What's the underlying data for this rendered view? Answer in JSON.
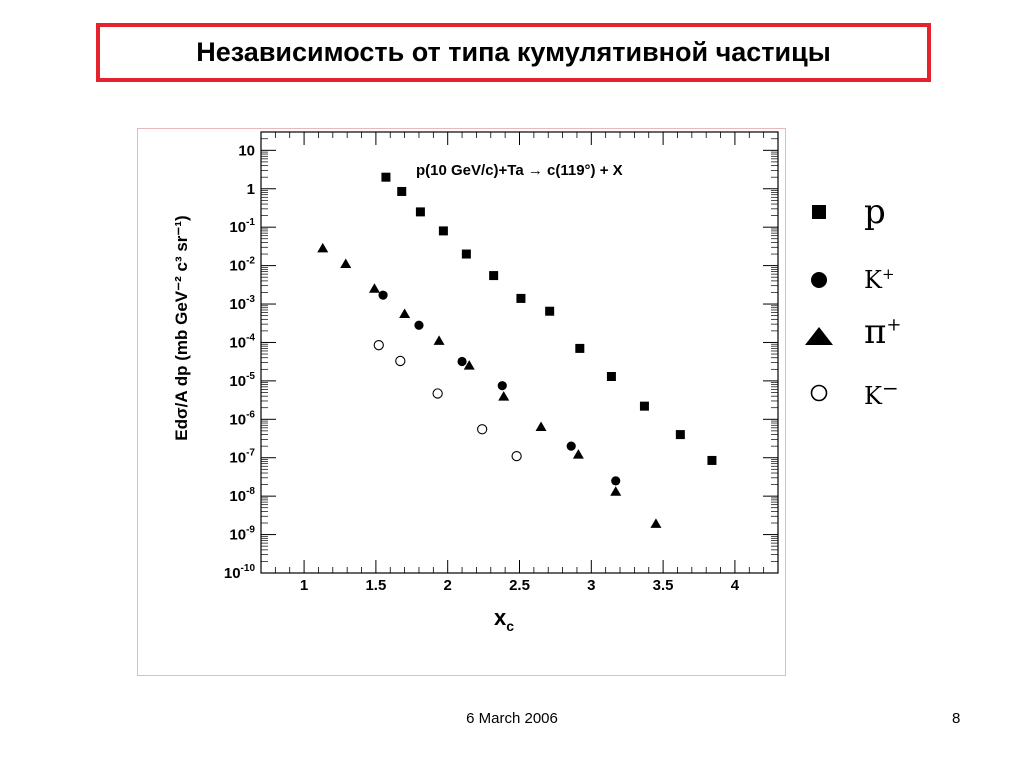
{
  "slide": {
    "title": "Независимость от типа кумулятивной частицы",
    "date": "6 March 2006",
    "page_number": "8"
  },
  "colors": {
    "title_border": "#e5232b",
    "marker": "#000000"
  },
  "legend": [
    {
      "marker": "filled-square",
      "text": "p",
      "sup": ""
    },
    {
      "marker": "filled-circle",
      "text": "K",
      "sup": "+"
    },
    {
      "marker": "filled-triangle",
      "text": "π",
      "sup": "+"
    },
    {
      "marker": "open-circle",
      "text": "K",
      "sup": "−"
    }
  ],
  "chart_data": {
    "type": "scatter",
    "annotation": "p(10 GeV/c)+Ta → c(119°) + X",
    "xlabel": "x",
    "xlabel_sub": "c",
    "ylabel": "Edσ/A dp (mb GeV⁻² c³ sr⁻¹)",
    "xlim": [
      0.7,
      4.3
    ],
    "ylim": [
      1e-10,
      30
    ],
    "yscale": "log",
    "x_ticks": [
      "1",
      "1.5",
      "2",
      "2.5",
      "3",
      "3.5",
      "4"
    ],
    "y_ticks": [
      {
        "base": "10",
        "exp": "-10"
      },
      {
        "base": "10",
        "exp": "-9"
      },
      {
        "base": "10",
        "exp": "-8"
      },
      {
        "base": "10",
        "exp": "-7"
      },
      {
        "base": "10",
        "exp": "-6"
      },
      {
        "base": "10",
        "exp": "-5"
      },
      {
        "base": "10",
        "exp": "-4"
      },
      {
        "base": "10",
        "exp": "-3"
      },
      {
        "base": "10",
        "exp": "-2"
      },
      {
        "base": "10",
        "exp": "-1"
      },
      {
        "base": "1",
        "exp": ""
      },
      {
        "base": "10",
        "exp": ""
      }
    ],
    "grid": false,
    "series": [
      {
        "marker": "filled-square",
        "x": [
          1.57,
          1.68,
          1.81,
          1.97,
          2.13,
          2.32,
          2.51,
          2.71,
          2.92,
          3.14,
          3.37,
          3.62,
          3.84
        ],
        "y": [
          2.0,
          0.85,
          0.25,
          0.08,
          0.02,
          0.0055,
          0.0014,
          0.00065,
          7e-05,
          1.3e-05,
          2.2e-06,
          4e-07,
          8.5e-08
        ]
      },
      {
        "marker": "filled-circle",
        "x": [
          1.55,
          1.8,
          2.1,
          2.38,
          2.86,
          3.17
        ],
        "y": [
          0.0017,
          0.00028,
          3.2e-05,
          7.5e-06,
          2e-07,
          2.5e-08
        ]
      },
      {
        "marker": "filled-triangle",
        "x": [
          1.13,
          1.29,
          1.49,
          1.7,
          1.94,
          2.15,
          2.39,
          2.65,
          2.91,
          3.17,
          3.45
        ],
        "y": [
          0.028,
          0.011,
          0.0025,
          0.00055,
          0.00011,
          2.5e-05,
          3.9e-06,
          6.3e-07,
          1.2e-07,
          1.3e-08,
          1.9e-09
        ]
      },
      {
        "marker": "open-circle",
        "x": [
          1.52,
          1.67,
          1.93,
          2.24,
          2.48
        ],
        "y": [
          8.5e-05,
          3.3e-05,
          4.7e-06,
          5.5e-07,
          1.1e-07
        ]
      }
    ]
  }
}
